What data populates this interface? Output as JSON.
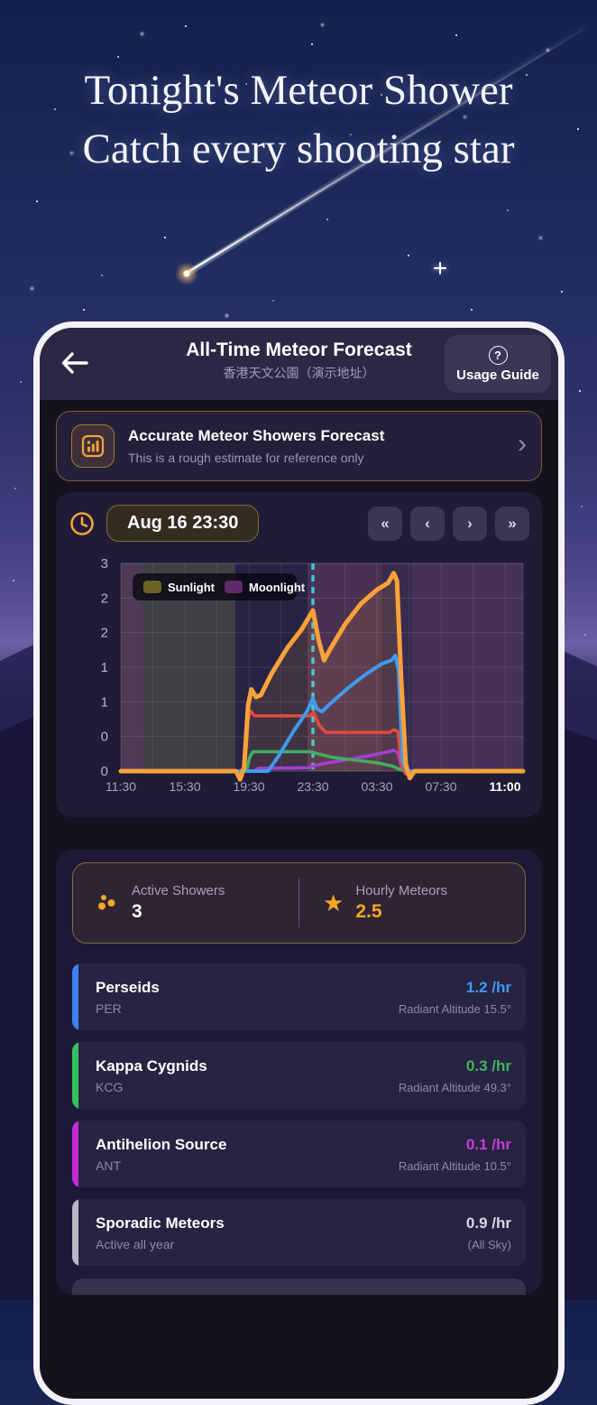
{
  "hero": {
    "title_line1": "Tonight's Meteor Shower",
    "title_line2": "Catch every shooting star"
  },
  "header": {
    "title": "All-Time Meteor Forecast",
    "subtitle": "香港天文公園（演示地址）",
    "usage_guide_label": "Usage Guide",
    "help_glyph": "?"
  },
  "banner": {
    "title": "Accurate Meteor Showers Forecast",
    "subtitle": "This is a rough estimate for reference only",
    "chevron": "›"
  },
  "time_nav": {
    "datetime": "Aug 16 23:30",
    "first_label": "«",
    "prev_label": "‹",
    "next_label": "›",
    "last_label": "»"
  },
  "chart_data": {
    "type": "line",
    "x_tick_labels": [
      "11:30",
      "15:30",
      "19:30",
      "23:30",
      "03:30",
      "07:30",
      "11:00"
    ],
    "y_tick_labels": [
      "3",
      "2",
      "2",
      "1",
      "1",
      "0",
      "0"
    ],
    "y_range": [
      0,
      3
    ],
    "x_hours_span": 23.5,
    "grid": true,
    "current_time_hour": 12,
    "current_time_line_color": "#38c9dc",
    "legend": [
      {
        "label": "Sunlight",
        "color": "#6b6325"
      },
      {
        "label": "Moonlight",
        "color": "#5e2a6b"
      }
    ],
    "bands": [
      {
        "from": 0,
        "to": 1.45,
        "color": "#4e3b58"
      },
      {
        "from": 1.45,
        "to": 7.15,
        "color": "#413e46"
      },
      {
        "from": 7.15,
        "to": 11.65,
        "color": "#272345"
      },
      {
        "from": 11.65,
        "to": 16.35,
        "color": "#4a3152"
      },
      {
        "from": 16.35,
        "to": 18.15,
        "color": "#382b4e"
      },
      {
        "from": 18.15,
        "to": 23.5,
        "color": "#463258"
      }
    ],
    "series": [
      {
        "name": "Antihelion Source",
        "color": "#a33fd9",
        "width": 3.5,
        "points": [
          [
            0,
            0
          ],
          [
            8.3,
            0
          ],
          [
            8.6,
            0.04
          ],
          [
            11.7,
            0.05
          ],
          [
            12.1,
            0.08
          ],
          [
            12.7,
            0.11
          ],
          [
            14,
            0.16
          ],
          [
            15.5,
            0.22
          ],
          [
            16.7,
            0.28
          ],
          [
            17.05,
            0.3
          ],
          [
            17.3,
            0.27
          ],
          [
            17.55,
            0.04
          ],
          [
            17.75,
            0
          ],
          [
            23.5,
            0
          ]
        ]
      },
      {
        "name": "Kappa Cygnids",
        "color": "#3faf5f",
        "width": 3.5,
        "points": [
          [
            0,
            0
          ],
          [
            7.85,
            0
          ],
          [
            8.05,
            0.2
          ],
          [
            8.25,
            0.28
          ],
          [
            11.85,
            0.28
          ],
          [
            12.3,
            0.25
          ],
          [
            13.2,
            0.2
          ],
          [
            14.6,
            0.16
          ],
          [
            16,
            0.12
          ],
          [
            17,
            0.07
          ],
          [
            17.45,
            0.02
          ],
          [
            17.75,
            0
          ],
          [
            23.5,
            0
          ]
        ]
      },
      {
        "name": "Sporadic Meteors",
        "color": "#e8483f",
        "width": 3.5,
        "points": [
          [
            0,
            0
          ],
          [
            7.5,
            0
          ],
          [
            7.75,
            0.08
          ],
          [
            7.95,
            0.75
          ],
          [
            8.1,
            0.87
          ],
          [
            8.35,
            0.8
          ],
          [
            11.8,
            0.8
          ],
          [
            12.05,
            0.85
          ],
          [
            12.4,
            0.66
          ],
          [
            12.8,
            0.56
          ],
          [
            16.8,
            0.56
          ],
          [
            17.05,
            0.6
          ],
          [
            17.3,
            0.57
          ],
          [
            17.55,
            0.08
          ],
          [
            17.8,
            -0.04
          ],
          [
            18.1,
            0
          ],
          [
            23.5,
            0
          ]
        ]
      },
      {
        "name": "Perseids",
        "color": "#3f9bf0",
        "width": 4,
        "points": [
          [
            0,
            0
          ],
          [
            9.2,
            0
          ],
          [
            9.8,
            0.2
          ],
          [
            10.8,
            0.58
          ],
          [
            11.6,
            0.85
          ],
          [
            12,
            1.05
          ],
          [
            12.25,
            0.9
          ],
          [
            12.55,
            0.86
          ],
          [
            13.3,
            1.02
          ],
          [
            14.3,
            1.22
          ],
          [
            15.3,
            1.4
          ],
          [
            16.3,
            1.55
          ],
          [
            16.9,
            1.6
          ],
          [
            17.15,
            1.67
          ],
          [
            17.35,
            1.45
          ],
          [
            17.6,
            0.15
          ],
          [
            17.85,
            0
          ],
          [
            23.5,
            0
          ]
        ]
      },
      {
        "name": "Total",
        "color": "#f9a23b",
        "width": 5,
        "fill": "rgba(249,162,59,0.12)",
        "points": [
          [
            0,
            0
          ],
          [
            7.2,
            0
          ],
          [
            7.45,
            -0.12
          ],
          [
            7.7,
            0.05
          ],
          [
            7.95,
            0.95
          ],
          [
            8.15,
            1.18
          ],
          [
            8.45,
            1.07
          ],
          [
            8.75,
            1.1
          ],
          [
            9.4,
            1.4
          ],
          [
            10.4,
            1.78
          ],
          [
            11.3,
            2.05
          ],
          [
            12,
            2.32
          ],
          [
            12.35,
            1.9
          ],
          [
            12.7,
            1.6
          ],
          [
            13.05,
            1.75
          ],
          [
            14,
            2.12
          ],
          [
            15,
            2.42
          ],
          [
            16,
            2.62
          ],
          [
            16.7,
            2.72
          ],
          [
            17.05,
            2.86
          ],
          [
            17.25,
            2.75
          ],
          [
            17.5,
            1.4
          ],
          [
            17.8,
            0.1
          ],
          [
            18.05,
            -0.1
          ],
          [
            18.35,
            0
          ],
          [
            23.5,
            0
          ]
        ]
      }
    ]
  },
  "stats": {
    "active_showers": {
      "label": "Active Showers",
      "value": "3"
    },
    "hourly_meteors": {
      "label": "Hourly Meteors",
      "value": "2.5"
    }
  },
  "showers": [
    {
      "name": "Perseids",
      "code": "PER",
      "rate": "1.2 /hr",
      "detail": "Radiant Altitude 15.5°",
      "rate_color": "#3b9af5",
      "accent": "#3b82f6"
    },
    {
      "name": "Kappa Cygnids",
      "code": "KCG",
      "rate": "0.3 /hr",
      "detail": "Radiant Altitude 49.3°",
      "rate_color": "#3cb85c",
      "accent": "#35c05e"
    },
    {
      "name": "Antihelion Source",
      "code": "ANT",
      "rate": "0.1 /hr",
      "detail": "Radiant Altitude 10.5°",
      "rate_color": "#c93ddb",
      "accent": "#c32ad4"
    },
    {
      "name": "Sporadic Meteors",
      "code": "Active all year",
      "rate": "0.9 /hr",
      "detail": "(All Sky)",
      "rate_color": "#d9d7e4",
      "accent": "#b9b7c6"
    }
  ]
}
